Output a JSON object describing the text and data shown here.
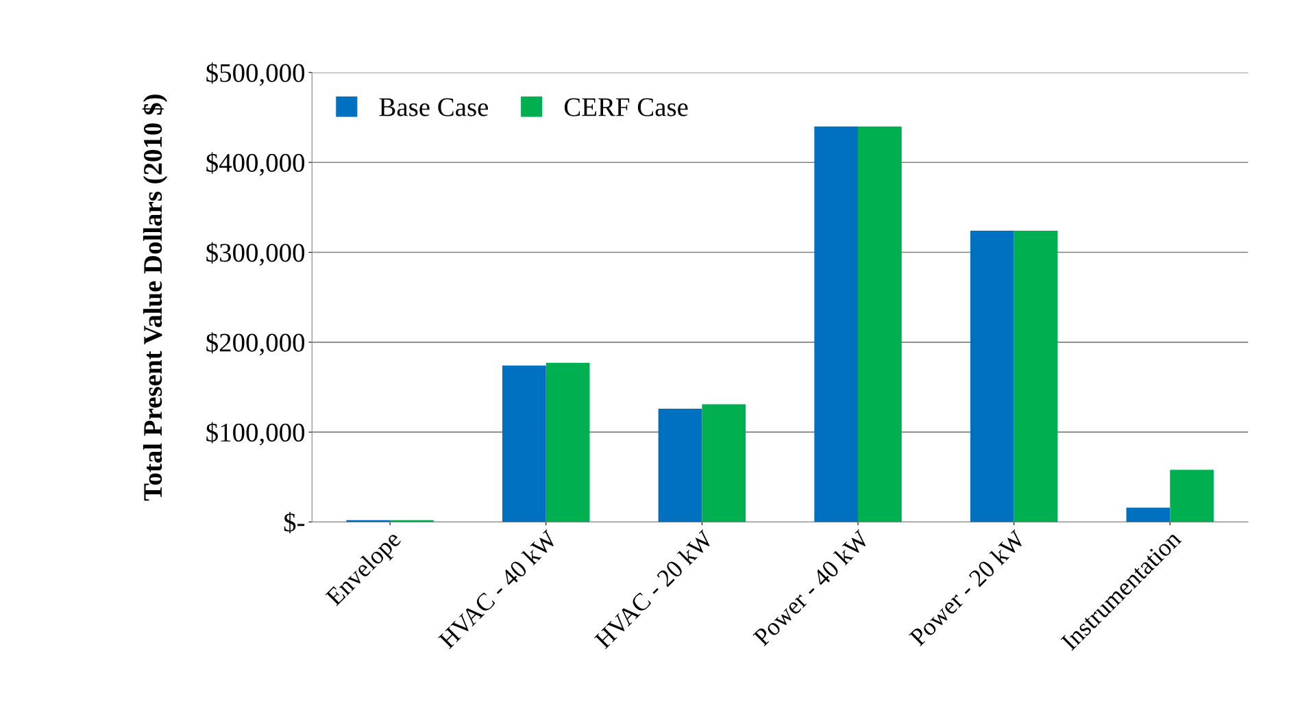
{
  "chart_data": {
    "type": "bar",
    "ylabel": "Total Present Value Dollars (2010 $)",
    "categories": [
      "Envelope",
      "HVAC - 40 kW",
      "HVAC - 20 kW",
      "Power - 40 kW",
      "Power - 20 kW",
      "Instrumentation"
    ],
    "series": [
      {
        "name": "Base Case",
        "color": "#0070c0",
        "values": [
          2000,
          174000,
          126000,
          440000,
          324000,
          16000
        ]
      },
      {
        "name": "CERF Case",
        "color": "#00b050",
        "values": [
          2000,
          177000,
          131000,
          440000,
          324000,
          58000
        ]
      }
    ],
    "ylim": [
      0,
      500000
    ],
    "yticks": [
      {
        "value": 0,
        "label": "$-"
      },
      {
        "value": 100000,
        "label": "$100,000"
      },
      {
        "value": 200000,
        "label": "$200,000"
      },
      {
        "value": 300000,
        "label": "$300,000"
      },
      {
        "value": 400000,
        "label": "$400,000"
      },
      {
        "value": 500000,
        "label": "$500,000"
      }
    ],
    "grid": "y",
    "legend": "top left"
  }
}
